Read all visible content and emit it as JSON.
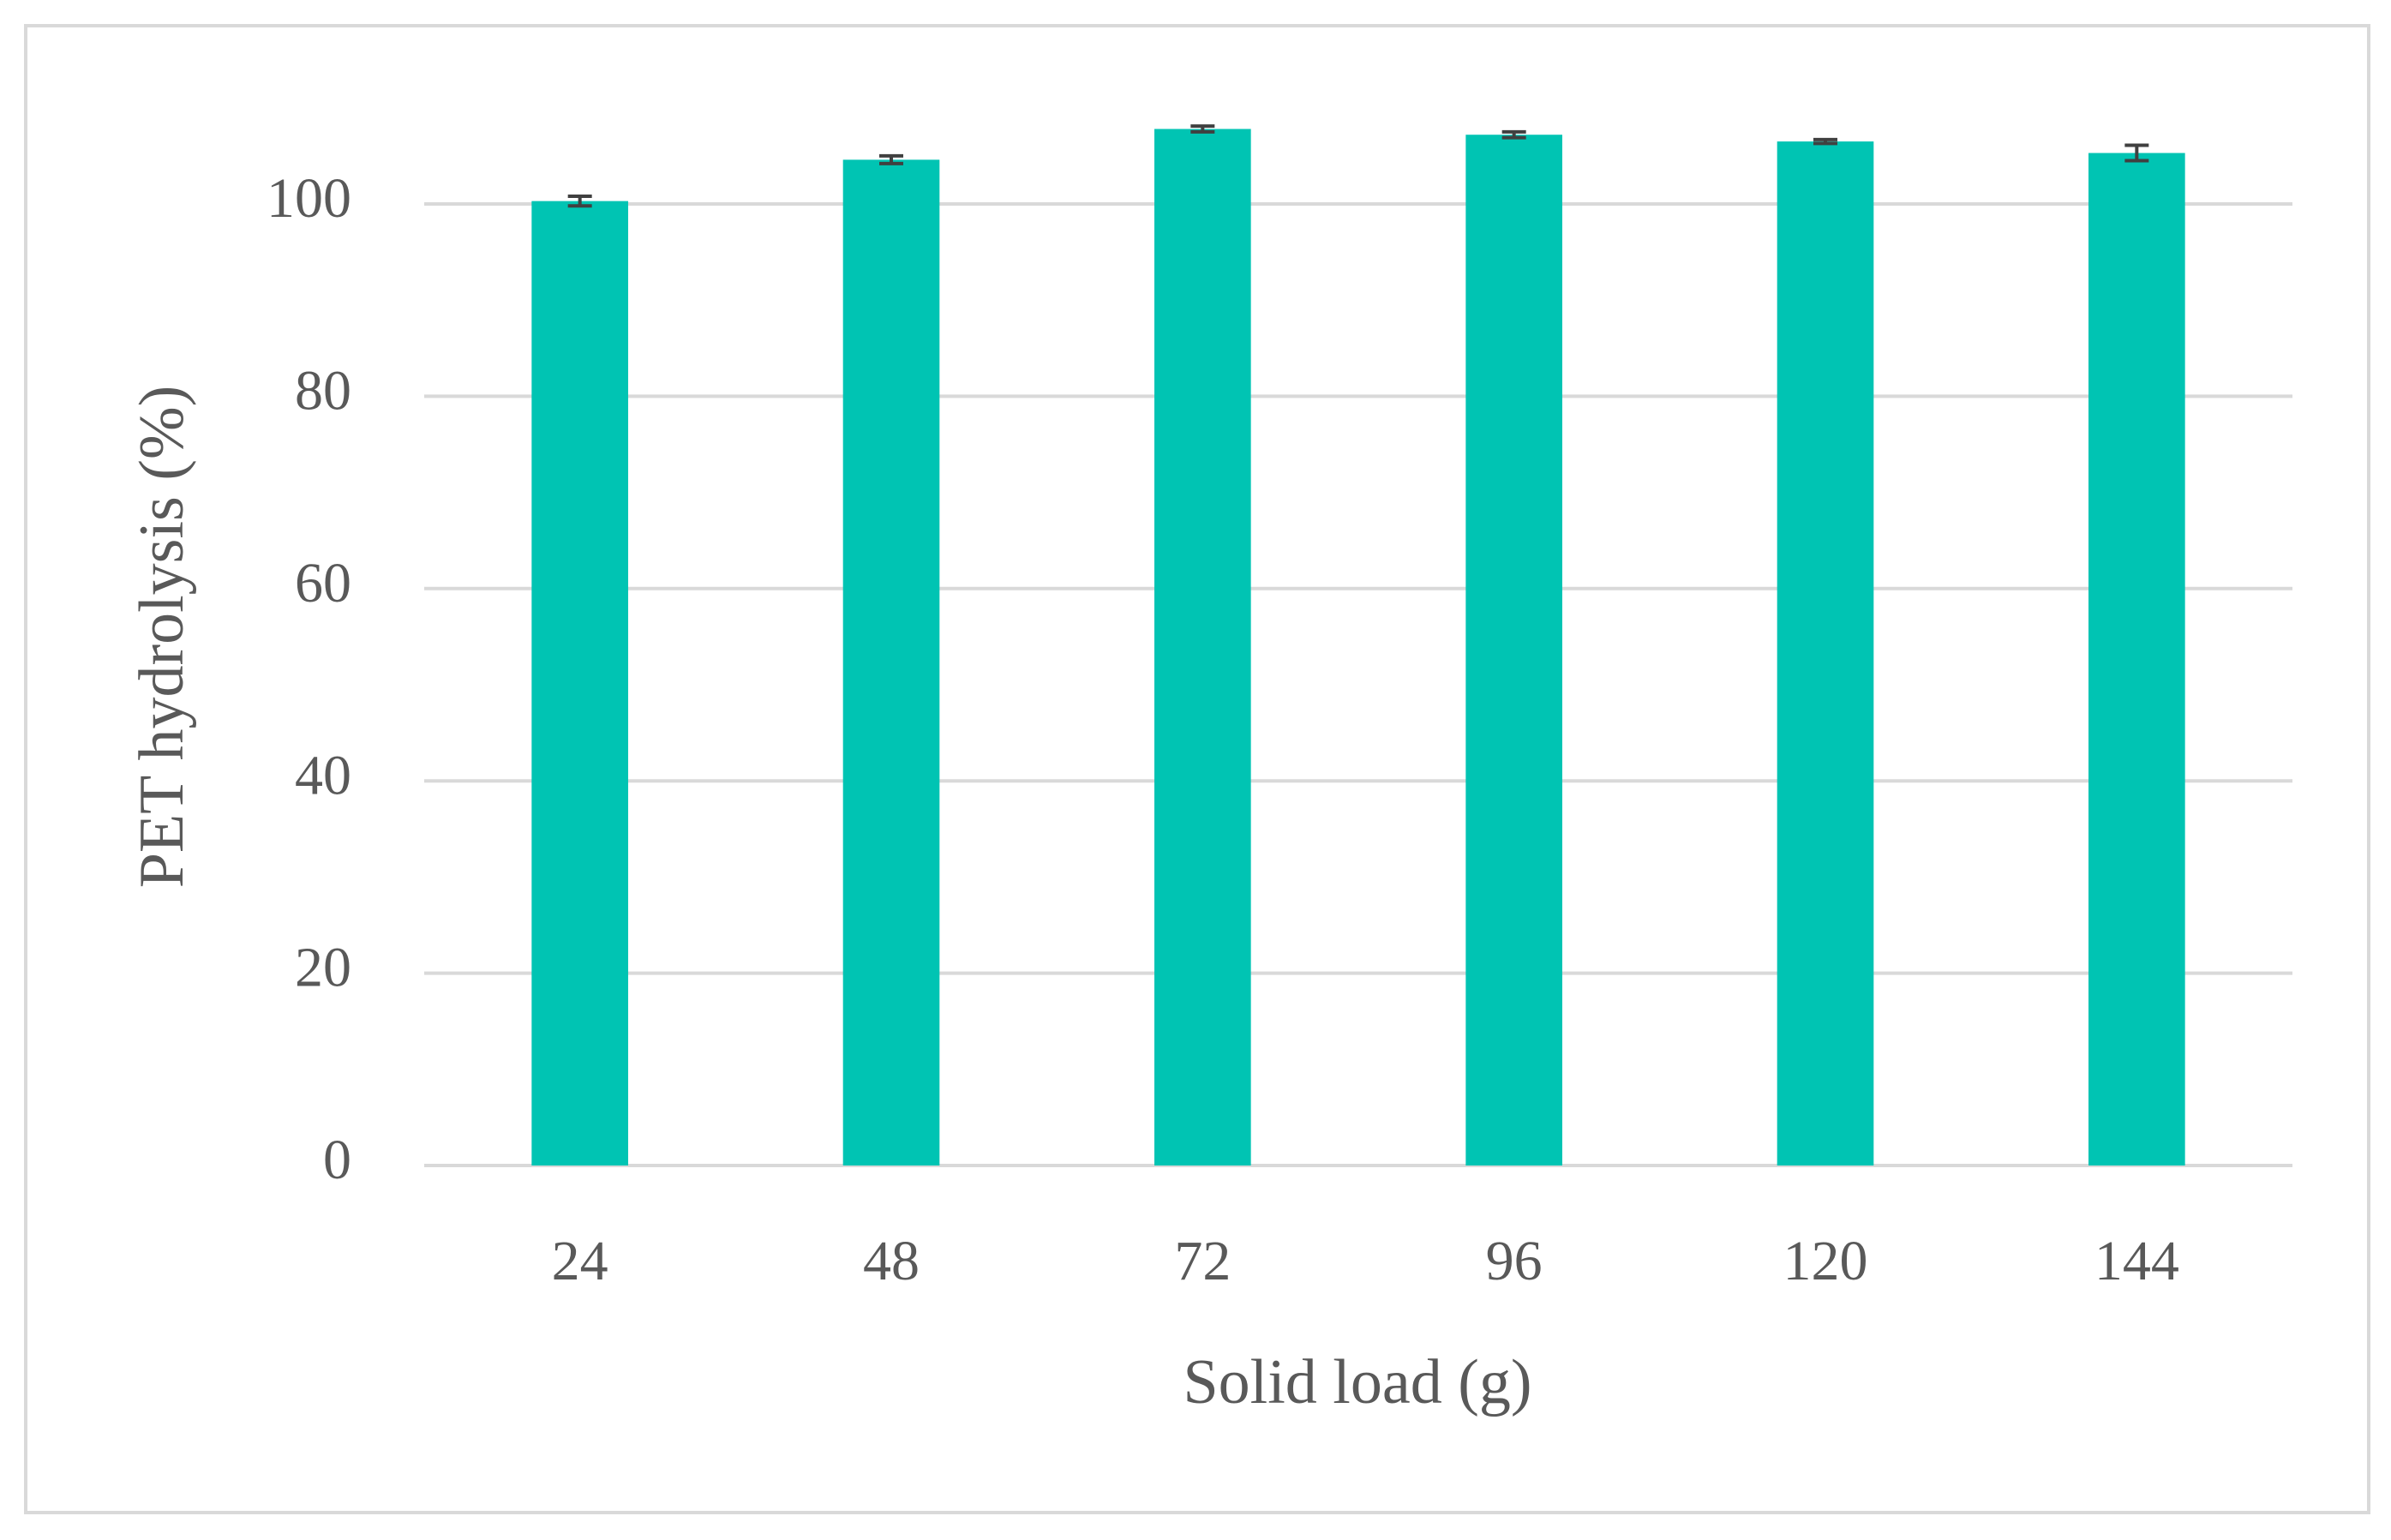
{
  "chart_data": {
    "type": "bar",
    "x_label": "Solid load (g)",
    "y_label": "PET hydrolysis (%)",
    "categories": [
      "24",
      "48",
      "72",
      "96",
      "120",
      "144"
    ],
    "values": [
      100.3,
      104.6,
      107.8,
      107.2,
      106.5,
      105.3
    ],
    "errors": [
      0.5,
      0.4,
      0.3,
      0.3,
      0.2,
      0.8
    ],
    "color": "#00c4b3",
    "error_color": "#404040",
    "ylim": [
      0,
      110
    ],
    "yticks": [
      0,
      20,
      40,
      60,
      80,
      100
    ],
    "grid": true
  }
}
